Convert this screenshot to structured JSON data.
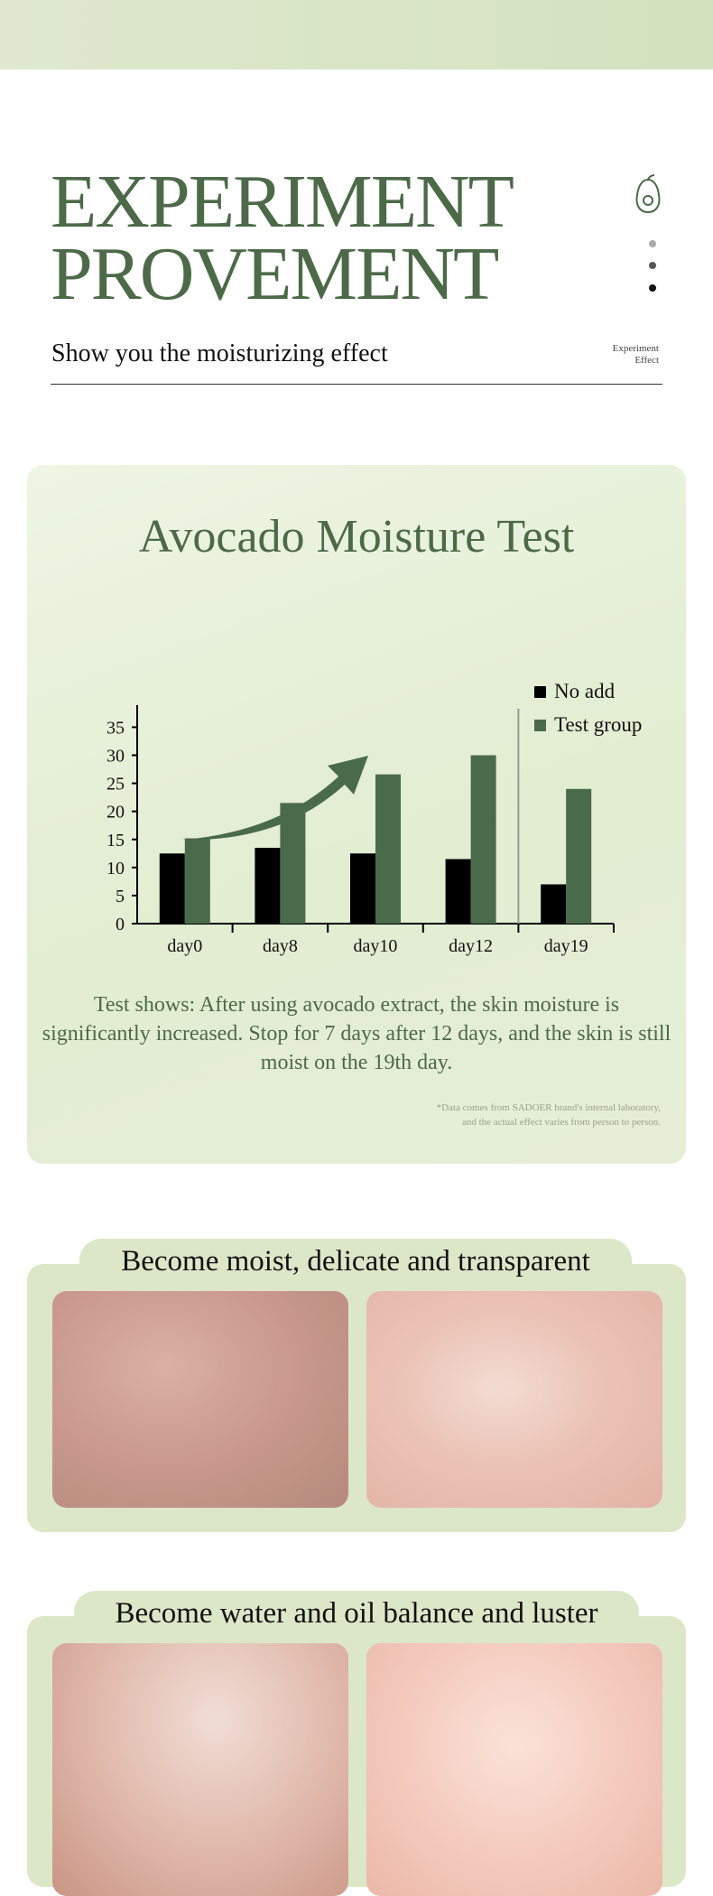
{
  "header": {
    "title_line1": "EXPERIMENT",
    "title_line2": "PROVEMENT",
    "subtitle": "Show you the moisturizing effect",
    "tag_line1": "Experiment",
    "tag_line2": "Effect"
  },
  "test_card": {
    "description": "Test shows: After using avocado extract, the skin moisture is significantly increased. Stop for 7 days after 12 days, and the skin is still moist on the 19th day.",
    "note_line1": "*Data comes from SADOER brand's internal laboratory,",
    "note_line2": "and the actual effect varies from person to person."
  },
  "chart_data": {
    "type": "bar",
    "title": "Avocado Moisture Test",
    "categories": [
      "day0",
      "day8",
      "day10",
      "day12",
      "day19"
    ],
    "series": [
      {
        "name": "No add",
        "values": [
          12.5,
          13.5,
          12.5,
          11.5,
          7
        ],
        "color": "#000000"
      },
      {
        "name": "Test group",
        "values": [
          15.2,
          21.5,
          26.6,
          30,
          24
        ],
        "color": "#4a6b4a"
      }
    ],
    "yticks": [
      0,
      5,
      10,
      15,
      20,
      25,
      30,
      35
    ],
    "ylim": [
      0,
      37
    ],
    "legend": "top-right",
    "grid": false
  },
  "panels": [
    {
      "title": "Become moist, delicate and transparent"
    },
    {
      "title": "Become water and oil balance and luster"
    }
  ],
  "colors": {
    "accent": "#4c6a48",
    "panel": "#dce7c8",
    "topband": "#d9e5c6"
  }
}
